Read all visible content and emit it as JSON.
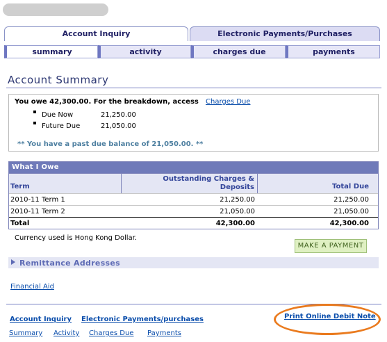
{
  "tabs": {
    "account_inquiry": "Account Inquiry",
    "electronic_payments": "Electronic Payments/Purchases"
  },
  "subtabs": [
    "summary",
    "activity",
    "charges due",
    "payments"
  ],
  "page_title": "Account Summary",
  "summary": {
    "owe_text": "You owe 42,300.00.  For the breakdown, access",
    "charges_due_link": "Charges Due",
    "due_now_label": "Due Now",
    "due_now_value": "21,250.00",
    "future_due_label": "Future Due",
    "future_due_value": "21,050.00",
    "past_due_notice": "** You have a past due balance of 21,050.00. **"
  },
  "grid": {
    "title": "What I Owe",
    "headers": {
      "term": "Term",
      "outstanding_line1": "Outstanding Charges &",
      "outstanding_line2": "Deposits",
      "total_due": "Total Due"
    },
    "rows": [
      {
        "term": "2010-11 Term 1",
        "outstanding": "21,250.00",
        "total": "21,250.00"
      },
      {
        "term": "2010-11 Term 2",
        "outstanding": "21,050.00",
        "total": "21,050.00"
      }
    ],
    "total_row": {
      "label": "Total",
      "outstanding": "42,300.00",
      "total": "42,300.00"
    }
  },
  "currency_note": "Currency used is Hong Kong Dollar.",
  "make_payment_button": "MAKE A PAYMENT",
  "remittance_label": "Remittance Addresses",
  "financial_aid_link": "Financial Aid",
  "footer": {
    "account_inquiry": "Account Inquiry",
    "electronic_payments": "Electronic Payments/purchases",
    "summary": "Summary",
    "activity": "Activity",
    "charges_due": "Charges Due",
    "payments": "Payments",
    "print_debit_note": "Print Online Debit Note"
  },
  "colors": {
    "accent": "#6f7ab9",
    "link": "#0a4dab",
    "highlight": "#ea7b1f"
  }
}
